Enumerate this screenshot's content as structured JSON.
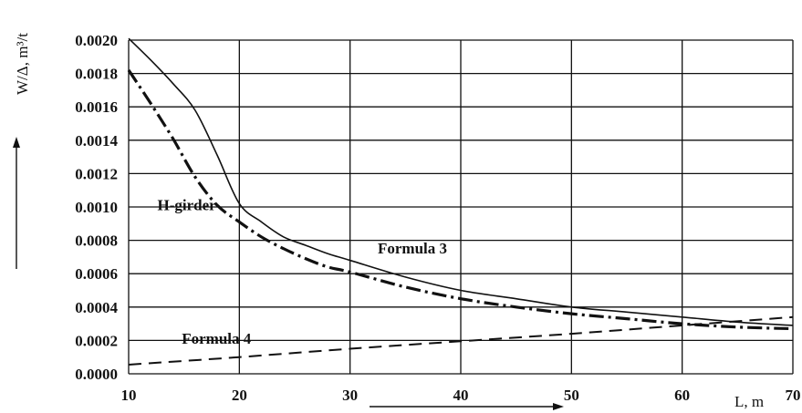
{
  "chart_data": {
    "type": "line",
    "ylabel": "W/Δ, m³/t",
    "xlabel": "L, m",
    "xlim": [
      10,
      70
    ],
    "ylim": [
      0,
      0.002
    ],
    "xticks": [
      10,
      20,
      30,
      40,
      50,
      60,
      70
    ],
    "xtick_labels": [
      "10",
      "20",
      "30",
      "40",
      "50",
      "60",
      "70"
    ],
    "yticks": [
      0,
      0.0002,
      0.0004,
      0.0006,
      0.0008,
      0.001,
      0.0012,
      0.0014,
      0.0016,
      0.0018,
      0.002
    ],
    "ytick_labels": [
      "0.0000",
      "0.0002",
      "0.0004",
      "0.0006",
      "0.0008",
      "0.0010",
      "0.0012",
      "0.0014",
      "0.0016",
      "0.0018",
      "0.0020"
    ],
    "grid": true,
    "series": [
      {
        "id": "formula3",
        "style": "solid",
        "x": [
          10,
          12,
          14,
          16,
          18,
          20,
          22,
          24,
          26,
          28,
          30,
          35,
          40,
          45,
          50,
          55,
          60,
          65,
          70
        ],
        "values": [
          0.00201,
          0.00188,
          0.00174,
          0.00158,
          0.00131,
          0.00102,
          0.00091,
          0.00082,
          0.00077,
          0.00072,
          0.00068,
          0.00058,
          0.0005,
          0.00045,
          0.0004,
          0.00037,
          0.00034,
          0.00031,
          0.00029
        ]
      },
      {
        "id": "h-girder",
        "style": "dash-dot",
        "x": [
          10,
          12,
          14,
          16,
          18,
          20,
          22,
          24,
          26,
          28,
          30,
          35,
          40,
          45,
          50,
          55,
          60,
          65,
          70
        ],
        "values": [
          0.00182,
          0.00162,
          0.00141,
          0.00118,
          0.00101,
          0.00091,
          0.00082,
          0.00075,
          0.00069,
          0.00064,
          0.00061,
          0.00052,
          0.00045,
          0.0004,
          0.00036,
          0.00033,
          0.0003,
          0.00028,
          0.00027
        ]
      },
      {
        "id": "formula4",
        "style": "dashed",
        "x": [
          10,
          20,
          30,
          40,
          50,
          60,
          70
        ],
        "values": [
          5.5e-05,
          0.0001,
          0.00015,
          0.000195,
          0.00024,
          0.00029,
          0.00034
        ]
      }
    ],
    "annotations": [
      {
        "text": "H-girder",
        "x": 12.6,
        "y": 0.00098
      },
      {
        "text": "Formula 3",
        "x": 32.5,
        "y": 0.00072
      },
      {
        "text": "Formula 4",
        "x": 14.8,
        "y": 0.00018
      }
    ]
  }
}
